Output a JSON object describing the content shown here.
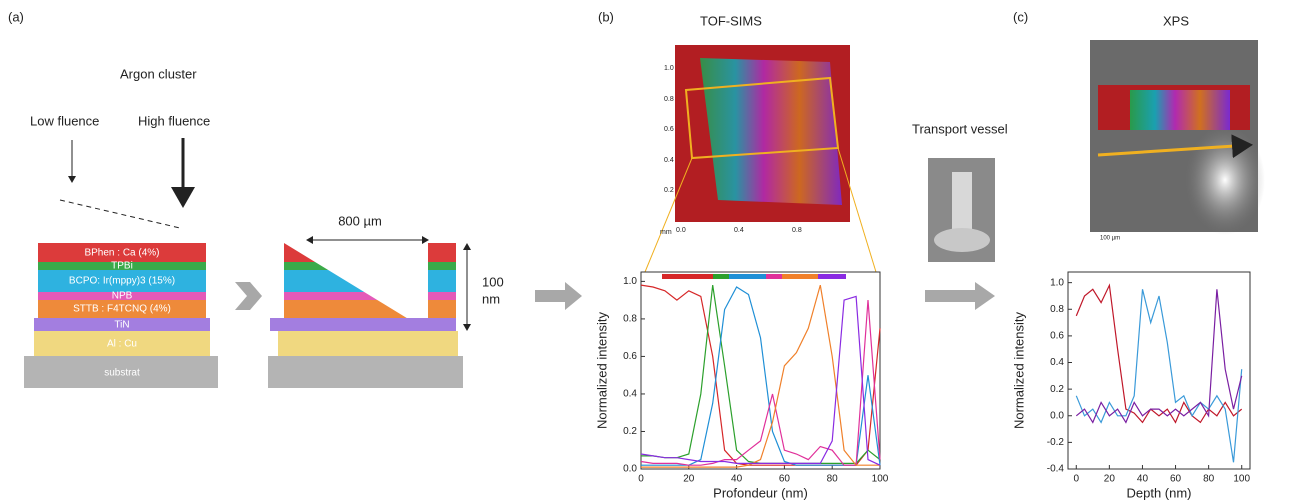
{
  "panels": {
    "a": {
      "label": "(a)",
      "title": "Argon cluster",
      "low": "Low fluence",
      "high": "High fluence",
      "layers": [
        "BPhen : Ca (4%)",
        "TPBi",
        "BCPO: Ir(mppy)3 (15%)",
        "NPB",
        "STTB : F4TCNQ (4%)",
        "TiN",
        "Al : Cu",
        "substrat"
      ],
      "width": "800 µm",
      "thickness": [
        "100",
        "nm"
      ]
    },
    "b": {
      "label": "(b)",
      "title": "TOF-SIMS",
      "image_yticks": [
        "1.0",
        "0.8",
        "0.6",
        "0.4",
        "0.2"
      ],
      "image_xticks": [
        "mm",
        "0.0",
        "0.4",
        "0.8"
      ]
    },
    "vessel": "Transport vessel",
    "c": {
      "label": "(c)",
      "title": "XPS",
      "scale": "100 µm"
    }
  },
  "chart_data": [
    {
      "type": "line",
      "xlabel": "Profondeur (nm)",
      "ylabel": "Normalized intensity",
      "x": [
        0,
        5,
        10,
        15,
        20,
        25,
        30,
        35,
        40,
        45,
        50,
        55,
        60,
        65,
        70,
        75,
        80,
        85,
        90,
        95,
        100
      ],
      "xlim": [
        0,
        100
      ],
      "xticks": [
        0,
        20,
        40,
        60,
        80,
        100
      ],
      "ylim": [
        0,
        1.05
      ],
      "yticks": [
        {
          "value": 0,
          "label": "0.0"
        },
        0.2,
        0.4,
        0.6,
        0.8,
        {
          "value": 1,
          "label": "1.0"
        }
      ],
      "series": [
        {
          "color": "#d62728",
          "values": [
            0.98,
            0.97,
            0.95,
            0.9,
            0.95,
            0.92,
            0.6,
            0.1,
            0.03,
            0.02,
            0.02,
            0.02,
            0.02,
            0.02,
            0.02,
            0.02,
            0.02,
            0.02,
            0.02,
            0.1,
            0.75
          ]
        },
        {
          "color": "#2ca02c",
          "values": [
            0.07,
            0.07,
            0.06,
            0.06,
            0.08,
            0.4,
            0.98,
            0.55,
            0.1,
            0.04,
            0.03,
            0.03,
            0.03,
            0.03,
            0.03,
            0.03,
            0.03,
            0.03,
            0.03,
            0.1,
            0.05
          ]
        },
        {
          "color": "#1f8fd6",
          "values": [
            0.02,
            0.02,
            0.02,
            0.02,
            0.02,
            0.05,
            0.35,
            0.85,
            0.97,
            0.93,
            0.7,
            0.2,
            0.04,
            0.02,
            0.02,
            0.02,
            0.02,
            0.02,
            0.02,
            0.5,
            0.02
          ]
        },
        {
          "color": "#e0309a",
          "values": [
            0.04,
            0.03,
            0.03,
            0.03,
            0.02,
            0.02,
            0.03,
            0.05,
            0.05,
            0.1,
            0.15,
            0.4,
            0.1,
            0.08,
            0.05,
            0.12,
            0.1,
            0.02,
            0.02,
            0.9,
            0.05
          ]
        },
        {
          "color": "#f0802a",
          "values": [
            0.01,
            0.01,
            0.01,
            0.01,
            0.01,
            0.01,
            0.01,
            0.01,
            0.01,
            0.02,
            0.05,
            0.25,
            0.55,
            0.62,
            0.75,
            0.98,
            0.6,
            0.1,
            0.02,
            0.02,
            0.02
          ]
        },
        {
          "color": "#8a2be2",
          "values": [
            0.08,
            0.07,
            0.06,
            0.06,
            0.05,
            0.04,
            0.04,
            0.04,
            0.03,
            0.03,
            0.03,
            0.03,
            0.03,
            0.03,
            0.03,
            0.03,
            0.15,
            0.9,
            0.92,
            0.05,
            0.02
          ]
        }
      ]
    },
    {
      "type": "line",
      "xlabel": "Depth (nm)",
      "ylabel": "Normalized intensity",
      "x": [
        0,
        5,
        10,
        15,
        20,
        25,
        30,
        35,
        40,
        45,
        50,
        55,
        60,
        65,
        70,
        75,
        80,
        85,
        90,
        95,
        100
      ],
      "xlim": [
        -5,
        105
      ],
      "xticks": [
        0,
        20,
        40,
        60,
        80,
        100
      ],
      "ylim": [
        -0.4,
        1.08
      ],
      "yticks": [
        -0.4,
        -0.2,
        {
          "value": 0,
          "label": "0.0"
        },
        0.2,
        0.4,
        0.6,
        0.8,
        {
          "value": 1,
          "label": "1.0"
        }
      ],
      "series": [
        {
          "color": "#c0182a",
          "values": [
            0.75,
            0.9,
            0.95,
            0.85,
            0.98,
            0.5,
            0.05,
            0.02,
            -0.05,
            0.05,
            0,
            0.05,
            -0.05,
            0.1,
            0,
            -0.05,
            0.05,
            0,
            0.1,
            0,
            0.05
          ]
        },
        {
          "color": "#3a9ad9",
          "values": [
            0.15,
            0,
            0.05,
            -0.05,
            0.1,
            0,
            0,
            0.15,
            0.95,
            0.7,
            0.9,
            0.55,
            0.1,
            0.15,
            0,
            0.1,
            0.05,
            0.15,
            0.05,
            -0.35,
            0.35
          ]
        },
        {
          "color": "#7a1fa2",
          "values": [
            0,
            0.05,
            -0.05,
            0.1,
            0,
            0.05,
            -0.05,
            0.1,
            0,
            0.05,
            0.05,
            0,
            0.05,
            0,
            0.05,
            0.1,
            0,
            0.95,
            0.35,
            0.05,
            0.3
          ]
        }
      ]
    }
  ]
}
